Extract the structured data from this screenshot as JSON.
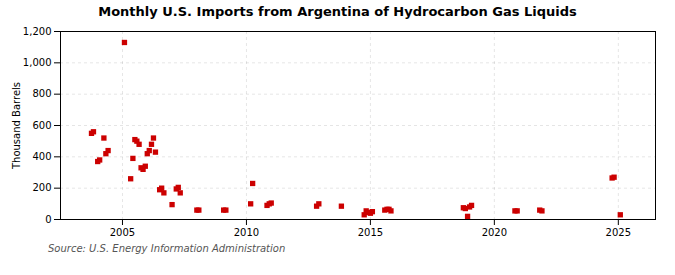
{
  "chart_data": {
    "type": "scatter",
    "title": "Monthly U.S. Imports from Argentina of Hydrocarbon Gas Liquids",
    "ylabel": "Thousand Barrels",
    "caption": "Source: U.S. Energy Information Administration",
    "color": "#cc0000",
    "marker": "square",
    "grid": true,
    "xlim": [
      2002.5,
      2026.5
    ],
    "ylim": [
      0,
      1200
    ],
    "xticks": [
      2005,
      2010,
      2015,
      2020,
      2025
    ],
    "yticks": [
      0,
      200,
      400,
      600,
      800,
      {
        "value": 1000,
        "label": "1,000"
      },
      {
        "value": 1200,
        "label": "1,200"
      }
    ],
    "x": [
      2003.75,
      2003.83,
      2004.0,
      2004.08,
      2004.25,
      2004.33,
      2004.42,
      2005.08,
      2005.33,
      2005.42,
      2005.5,
      2005.58,
      2005.67,
      2005.75,
      2005.83,
      2005.92,
      2006.0,
      2006.08,
      2006.17,
      2006.25,
      2006.33,
      2006.5,
      2006.58,
      2006.67,
      2007.0,
      2007.17,
      2007.25,
      2007.33,
      2008.0,
      2008.08,
      2009.08,
      2009.17,
      2010.17,
      2010.25,
      2010.83,
      2010.92,
      2011.0,
      2012.83,
      2012.92,
      2013.83,
      2014.75,
      2014.83,
      2014.92,
      2015.0,
      2015.08,
      2015.58,
      2015.67,
      2015.75,
      2015.83,
      2018.75,
      2018.83,
      2018.92,
      2019.0,
      2019.08,
      2020.83,
      2020.92,
      2021.83,
      2021.92,
      2024.75,
      2024.83,
      2025.08
    ],
    "values": [
      550,
      560,
      370,
      380,
      520,
      420,
      440,
      1130,
      260,
      390,
      510,
      500,
      480,
      330,
      320,
      340,
      420,
      440,
      480,
      520,
      430,
      190,
      200,
      170,
      95,
      195,
      205,
      170,
      60,
      60,
      60,
      60,
      100,
      230,
      90,
      100,
      105,
      85,
      100,
      85,
      30,
      55,
      45,
      40,
      50,
      60,
      65,
      65,
      55,
      75,
      70,
      20,
      80,
      90,
      55,
      55,
      60,
      55,
      265,
      270,
      30
    ]
  }
}
